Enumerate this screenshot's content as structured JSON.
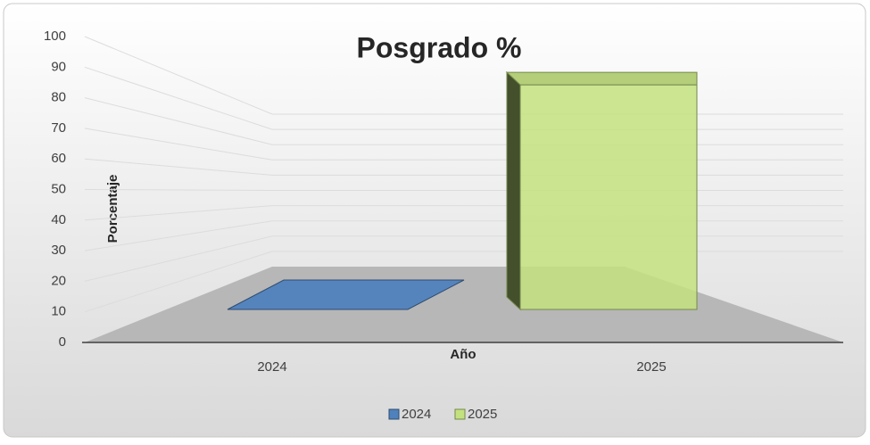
{
  "chart_data": {
    "type": "bar",
    "title": "Posgrado %",
    "x_label": "Año",
    "y_label": "Porcentaje",
    "categories": [
      "2024",
      "2025"
    ],
    "series": [
      {
        "name": "2024",
        "color": "#4f81bd",
        "values": [
          0,
          null
        ]
      },
      {
        "name": "2025",
        "color": "#c3e27f",
        "values": [
          null,
          94
        ]
      }
    ],
    "ylim": [
      0,
      100
    ],
    "yticks": [
      0,
      10,
      20,
      30,
      40,
      50,
      60,
      70,
      80,
      90,
      100
    ],
    "grid": true,
    "legend": "bottom"
  }
}
